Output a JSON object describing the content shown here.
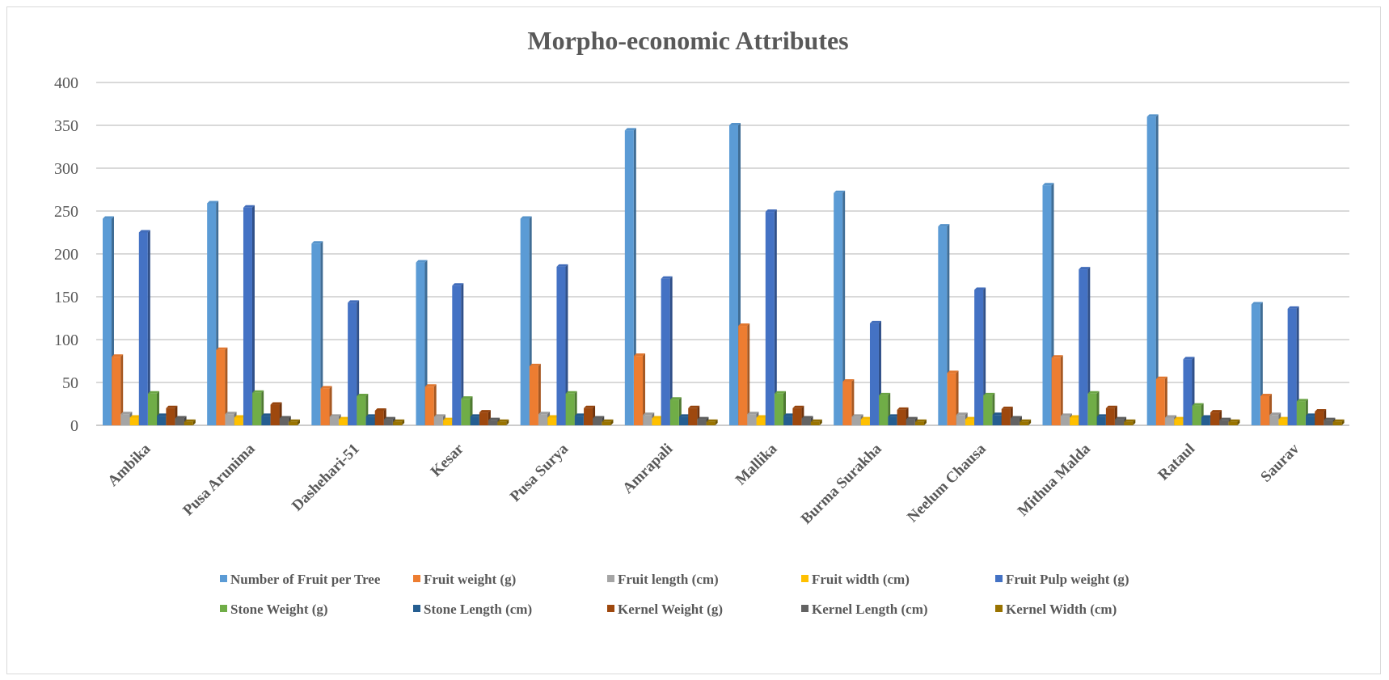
{
  "chart_data": {
    "type": "bar",
    "title": "Morpho-economic Attributes",
    "xlabel": "",
    "ylabel": "",
    "ylim": [
      0,
      400
    ],
    "yticks": [
      0,
      50,
      100,
      150,
      200,
      250,
      300,
      350,
      400
    ],
    "grid": true,
    "legend_position": "bottom",
    "categories": [
      "Ambika",
      "Pusa Arunima",
      "Dashehari-51",
      "Kesar",
      "Pusa Surya",
      "Amrapali",
      "Mallika",
      "Burma Surakha",
      "Neelum Chausa",
      "Mithua Malda",
      "Rataul",
      "Saurav"
    ],
    "series": [
      {
        "name": "Number of Fruit per Tree",
        "color": "#5b9bd5",
        "values": [
          241,
          259,
          212,
          190,
          241,
          344,
          350,
          271,
          232,
          280,
          360,
          141
        ]
      },
      {
        "name": "Fruit weight (g)",
        "color": "#ed7d31",
        "values": [
          80,
          88,
          43,
          45,
          69,
          81,
          116,
          51,
          61,
          79,
          54,
          34
        ]
      },
      {
        "name": "Fruit length (cm)",
        "color": "#a5a5a5",
        "values": [
          13,
          13,
          10,
          10,
          13,
          12,
          13,
          10,
          12,
          11,
          9,
          12
        ]
      },
      {
        "name": "Fruit width (cm)",
        "color": "#ffc000",
        "values": [
          9,
          9,
          7,
          6,
          9,
          8,
          9,
          7,
          7,
          9,
          7,
          7
        ]
      },
      {
        "name": "Fruit Pulp weight (g)",
        "color": "#4472c4",
        "values": [
          225,
          254,
          143,
          163,
          185,
          171,
          249,
          119,
          158,
          182,
          77,
          136
        ]
      },
      {
        "name": "Stone Weight (g)",
        "color": "#70ad47",
        "values": [
          37,
          38,
          34,
          31,
          37,
          30,
          37,
          35,
          35,
          37,
          23,
          28
        ]
      },
      {
        "name": "Stone Length (cm)",
        "color": "#255e91",
        "values": [
          11,
          11,
          10,
          10,
          11,
          10,
          11,
          10,
          12,
          10,
          9,
          11
        ]
      },
      {
        "name": "Kernel Weight (g)",
        "color": "#9e480e",
        "values": [
          20,
          24,
          17,
          15,
          20,
          20,
          20,
          18,
          19,
          20,
          15,
          16
        ]
      },
      {
        "name": "Kernel Length (cm)",
        "color": "#636363",
        "values": [
          8,
          8,
          7,
          6,
          8,
          7,
          8,
          7,
          8,
          7,
          6,
          6
        ]
      },
      {
        "name": "Kernel Width (cm)",
        "color": "#997300",
        "values": [
          4,
          4,
          4,
          4,
          4,
          4,
          4,
          4,
          4,
          4,
          4,
          4
        ]
      }
    ]
  }
}
